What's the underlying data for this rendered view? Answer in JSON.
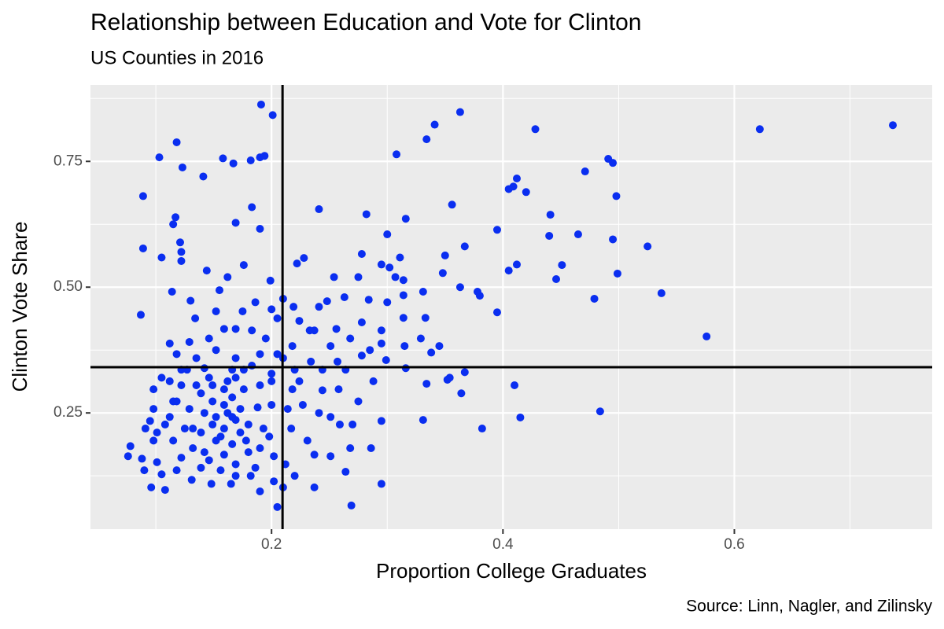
{
  "chart_data": {
    "type": "scatter",
    "title": "Relationship between Education and Vote for Clinton",
    "subtitle": "US Counties in 2016",
    "x_label": "Proportion College Graduates",
    "y_label": "Clinton Vote Share",
    "caption": "Source: Linn, Nagler, and Zilinsky",
    "color": "#0a2ef0",
    "grid": true,
    "xlim": [
      0.0435,
      0.771
    ],
    "ylim": [
      0.019,
      0.902
    ],
    "xticks": [
      0.2,
      0.4,
      0.6
    ],
    "yticks": [
      0.25,
      {
        "value": 0.5,
        "label": "0.50"
      },
      0.75
    ],
    "minor_xticks": [
      0.1,
      0.3,
      0.5,
      0.7
    ],
    "minor_yticks": [
      0.125,
      0.375,
      0.625,
      0.875
    ],
    "vline": 0.2095,
    "hline": 0.341,
    "x": [
      0.737,
      0.622,
      0.576,
      0.537,
      0.525,
      0.499,
      0.498,
      0.495,
      0.495,
      0.491,
      0.484,
      0.479,
      0.471,
      0.465,
      0.451,
      0.446,
      0.441,
      0.44,
      0.428,
      0.42,
      0.412,
      0.409,
      0.405,
      0.412,
      0.405,
      0.415,
      0.41,
      0.395,
      0.395,
      0.382,
      0.38,
      0.378,
      0.367,
      0.367,
      0.363,
      0.364,
      0.363,
      0.356,
      0.354,
      0.35,
      0.348,
      0.345,
      0.341,
      0.334,
      0.334,
      0.331,
      0.308,
      0.316,
      0.311,
      0.3,
      0.295,
      0.295,
      0.295,
      0.282,
      0.278,
      0.269,
      0.286,
      0.27,
      0.241,
      0.191,
      0.201,
      0.118,
      0.103,
      0.123,
      0.141,
      0.158,
      0.167,
      0.182,
      0.19,
      0.194,
      0.089,
      0.183,
      0.19,
      0.169,
      0.117,
      0.115,
      0.121,
      0.122,
      0.089,
      0.105,
      0.122,
      0.087,
      0.114,
      0.144,
      0.176,
      0.162,
      0.199,
      0.21,
      0.228,
      0.222,
      0.254,
      0.275,
      0.307,
      0.314,
      0.302,
      0.331,
      0.314,
      0.3,
      0.284,
      0.263,
      0.248,
      0.241,
      0.219,
      0.186,
      0.155,
      0.13,
      0.134,
      0.152,
      0.175,
      0.2,
      0.205,
      0.224,
      0.237,
      0.256,
      0.278,
      0.295,
      0.314,
      0.333,
      0.329,
      0.315,
      0.295,
      0.285,
      0.268,
      0.251,
      0.233,
      0.218,
      0.205,
      0.195,
      0.183,
      0.169,
      0.159,
      0.146,
      0.129,
      0.112,
      0.118,
      0.135,
      0.152,
      0.169,
      0.19,
      0.21,
      0.234,
      0.257,
      0.278,
      0.299,
      0.316,
      0.338,
      0.352,
      0.264,
      0.244,
      0.22,
      0.2,
      0.183,
      0.166,
      0.142,
      0.122,
      0.105,
      0.098,
      0.098,
      0.095,
      0.091,
      0.098,
      0.078,
      0.076,
      0.088,
      0.09,
      0.101,
      0.105,
      0.096,
      0.108,
      0.118,
      0.122,
      0.115,
      0.112,
      0.118,
      0.122,
      0.129,
      0.132,
      0.132,
      0.131,
      0.139,
      0.142,
      0.139,
      0.142,
      0.139,
      0.146,
      0.149,
      0.152,
      0.152,
      0.148,
      0.156,
      0.159,
      0.159,
      0.159,
      0.159,
      0.162,
      0.166,
      0.166,
      0.166,
      0.165,
      0.169,
      0.173,
      0.173,
      0.176,
      0.18,
      0.18,
      0.182,
      0.186,
      0.19,
      0.19,
      0.193,
      0.188,
      0.19,
      0.2,
      0.2,
      0.198,
      0.202,
      0.202,
      0.205,
      0.21,
      0.212,
      0.217,
      0.214,
      0.218,
      0.224,
      0.227,
      0.231,
      0.22,
      0.237,
      0.237,
      0.241,
      0.244,
      0.251,
      0.258,
      0.259,
      0.251,
      0.264,
      0.268,
      0.275,
      0.288,
      0.101,
      0.108,
      0.125,
      0.135,
      0.149,
      0.169,
      0.162,
      0.149,
      0.169,
      0.156,
      0.146,
      0.169,
      0.178,
      0.176,
      0.112,
      0.115,
      0.127
    ],
    "values": [
      0.822,
      0.814,
      0.402,
      0.488,
      0.581,
      0.527,
      0.681,
      0.595,
      0.747,
      0.755,
      0.253,
      0.477,
      0.73,
      0.605,
      0.544,
      0.516,
      0.644,
      0.602,
      0.814,
      0.689,
      0.716,
      0.7,
      0.695,
      0.545,
      0.533,
      0.241,
      0.305,
      0.614,
      0.45,
      0.219,
      0.483,
      0.491,
      0.331,
      0.581,
      0.5,
      0.289,
      0.848,
      0.664,
      0.32,
      0.563,
      0.528,
      0.383,
      0.823,
      0.794,
      0.308,
      0.236,
      0.764,
      0.636,
      0.559,
      0.605,
      0.545,
      0.234,
      0.109,
      0.645,
      0.566,
      0.066,
      0.18,
      0.227,
      0.655,
      0.863,
      0.842,
      0.788,
      0.758,
      0.738,
      0.72,
      0.756,
      0.746,
      0.752,
      0.758,
      0.761,
      0.681,
      0.659,
      0.616,
      0.628,
      0.639,
      0.625,
      0.589,
      0.57,
      0.577,
      0.559,
      0.552,
      0.445,
      0.491,
      0.533,
      0.544,
      0.52,
      0.513,
      0.477,
      0.558,
      0.547,
      0.52,
      0.52,
      0.52,
      0.514,
      0.539,
      0.491,
      0.484,
      0.47,
      0.475,
      0.48,
      0.472,
      0.461,
      0.461,
      0.47,
      0.494,
      0.473,
      0.438,
      0.452,
      0.452,
      0.456,
      0.438,
      0.433,
      0.414,
      0.417,
      0.43,
      0.414,
      0.439,
      0.439,
      0.398,
      0.383,
      0.388,
      0.375,
      0.398,
      0.383,
      0.414,
      0.383,
      0.367,
      0.398,
      0.414,
      0.417,
      0.417,
      0.398,
      0.391,
      0.388,
      0.367,
      0.359,
      0.375,
      0.359,
      0.367,
      0.359,
      0.352,
      0.352,
      0.364,
      0.355,
      0.339,
      0.37,
      0.316,
      0.336,
      0.336,
      0.336,
      0.328,
      0.344,
      0.336,
      0.339,
      0.336,
      0.32,
      0.297,
      0.258,
      0.234,
      0.219,
      0.195,
      0.184,
      0.164,
      0.159,
      0.136,
      0.152,
      0.128,
      0.102,
      0.097,
      0.136,
      0.161,
      0.195,
      0.242,
      0.273,
      0.305,
      0.258,
      0.219,
      0.18,
      0.117,
      0.141,
      0.172,
      0.211,
      0.25,
      0.289,
      0.32,
      0.273,
      0.242,
      0.195,
      0.109,
      0.136,
      0.167,
      0.219,
      0.266,
      0.297,
      0.313,
      0.281,
      0.242,
      0.188,
      0.109,
      0.148,
      0.211,
      0.258,
      0.297,
      0.227,
      0.172,
      0.125,
      0.141,
      0.094,
      0.18,
      0.219,
      0.261,
      0.305,
      0.313,
      0.266,
      0.203,
      0.164,
      0.114,
      0.063,
      0.102,
      0.148,
      0.219,
      0.258,
      0.297,
      0.313,
      0.266,
      0.195,
      0.125,
      0.167,
      0.102,
      0.25,
      0.295,
      0.242,
      0.297,
      0.227,
      0.164,
      0.133,
      0.18,
      0.273,
      0.313,
      0.211,
      0.227,
      0.219,
      0.305,
      0.305,
      0.32,
      0.25,
      0.227,
      0.236,
      0.203,
      0.156,
      0.125,
      0.195,
      0.336,
      0.313,
      0.273,
      0.336
    ]
  }
}
